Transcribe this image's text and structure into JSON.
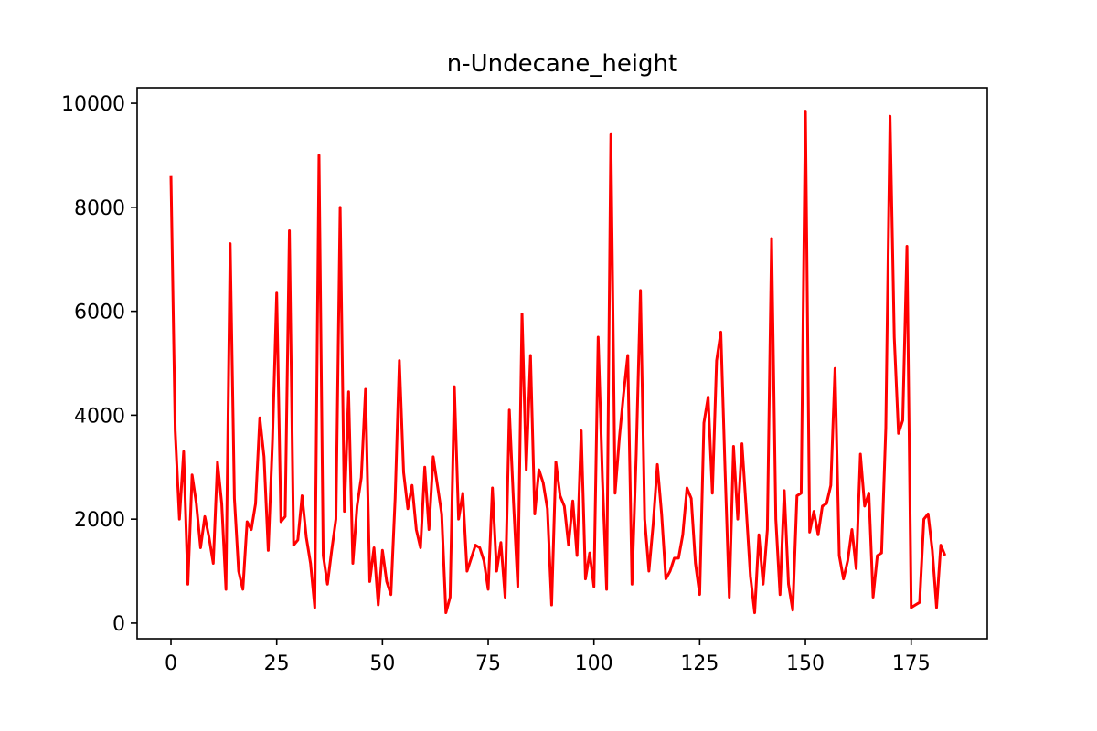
{
  "chart_data": {
    "type": "line",
    "title": "n-Undecane_height",
    "xlabel": "",
    "ylabel": "",
    "xlim": [
      -8,
      193
    ],
    "ylim": [
      -300,
      10300
    ],
    "xticks": [
      0,
      25,
      50,
      75,
      100,
      125,
      150,
      175
    ],
    "yticks": [
      0,
      2000,
      4000,
      6000,
      8000,
      10000
    ],
    "grid": false,
    "legend": "none",
    "series": [
      {
        "color": "#ff0000",
        "x": [
          0,
          1,
          2,
          3,
          4,
          5,
          6,
          7,
          8,
          9,
          10,
          11,
          12,
          13,
          14,
          15,
          16,
          17,
          18,
          19,
          20,
          21,
          22,
          23,
          24,
          25,
          26,
          27,
          28,
          29,
          30,
          31,
          32,
          33,
          34,
          35,
          36,
          37,
          38,
          39,
          40,
          41,
          42,
          43,
          44,
          45,
          46,
          47,
          48,
          49,
          50,
          51,
          52,
          53,
          54,
          55,
          56,
          57,
          58,
          59,
          60,
          61,
          62,
          63,
          64,
          65,
          66,
          67,
          68,
          69,
          70,
          71,
          72,
          73,
          74,
          75,
          76,
          77,
          78,
          79,
          80,
          81,
          82,
          83,
          84,
          85,
          86,
          87,
          88,
          89,
          90,
          91,
          92,
          93,
          94,
          95,
          96,
          97,
          98,
          99,
          100,
          101,
          102,
          103,
          104,
          105,
          106,
          107,
          108,
          109,
          110,
          111,
          112,
          113,
          114,
          115,
          116,
          117,
          118,
          119,
          120,
          121,
          122,
          123,
          124,
          125,
          126,
          127,
          128,
          129,
          130,
          131,
          132,
          133,
          134,
          135,
          136,
          137,
          138,
          139,
          140,
          141,
          142,
          143,
          144,
          145,
          146,
          147,
          148,
          149,
          150,
          151,
          152,
          153,
          154,
          155,
          156,
          157,
          158,
          159,
          160,
          161,
          162,
          163,
          164,
          165,
          166,
          167,
          168,
          169,
          170,
          171,
          172,
          173,
          174,
          175,
          176,
          177,
          178,
          179,
          180,
          181,
          182,
          183
        ],
        "y": [
          8600,
          3700,
          2000,
          3300,
          750,
          2850,
          2300,
          1450,
          2050,
          1650,
          1150,
          3100,
          2300,
          650,
          7300,
          2400,
          1000,
          650,
          1950,
          1800,
          2300,
          3950,
          3200,
          1400,
          3500,
          6350,
          1950,
          2050,
          7550,
          1500,
          1600,
          2450,
          1650,
          1150,
          300,
          9000,
          1300,
          750,
          1400,
          2000,
          8000,
          2150,
          4450,
          1150,
          2250,
          2800,
          4500,
          800,
          1450,
          350,
          1400,
          800,
          550,
          2400,
          5050,
          2900,
          2200,
          2650,
          1800,
          1450,
          3000,
          1800,
          3200,
          2650,
          2100,
          200,
          500,
          4550,
          2000,
          2500,
          1000,
          1250,
          1500,
          1450,
          1200,
          650,
          2600,
          1000,
          1550,
          500,
          4100,
          2300,
          700,
          5950,
          2950,
          5150,
          2100,
          2950,
          2700,
          2200,
          350,
          3100,
          2450,
          2250,
          1500,
          2350,
          1300,
          3700,
          850,
          1350,
          700,
          5500,
          2800,
          650,
          9400,
          2500,
          3550,
          4400,
          5150,
          750,
          3250,
          6400,
          2000,
          1000,
          1900,
          3050,
          2100,
          850,
          1000,
          1250,
          1250,
          1700,
          2600,
          2400,
          1150,
          550,
          3850,
          4350,
          2500,
          5050,
          5600,
          2950,
          500,
          3400,
          2000,
          3450,
          2200,
          900,
          200,
          1700,
          750,
          1800,
          7400,
          2000,
          550,
          2550,
          750,
          250,
          2450,
          2500,
          9850,
          1750,
          2150,
          1700,
          2250,
          2300,
          2650,
          4900,
          1300,
          850,
          1200,
          1800,
          1050,
          3250,
          2250,
          2500,
          500,
          1300,
          1350,
          3750,
          9750,
          5500,
          3650,
          3900,
          7250,
          300,
          350,
          400,
          2000,
          2100,
          1400,
          300,
          1500,
          1300
        ]
      }
    ]
  }
}
